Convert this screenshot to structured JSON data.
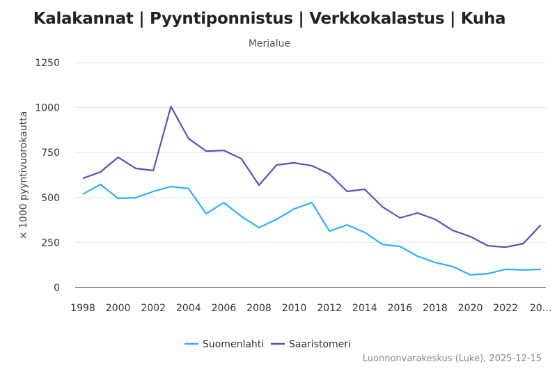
{
  "chart_data": {
    "type": "line",
    "title": "Kalakannat | Pyyntiponnistus | Verkkokalastus | Kuha",
    "subtitle": "Merialue",
    "ylabel": "× 1000 pyyntivuorokautta",
    "xlabel": "",
    "ylim": [
      0,
      1250
    ],
    "yticks": [
      "0",
      "250",
      "500",
      "750",
      "1000",
      "1250"
    ],
    "xticks": [
      "1998",
      "2000",
      "2002",
      "2004",
      "2006",
      "2008",
      "2010",
      "2012",
      "2014",
      "2016",
      "2018",
      "2020",
      "2022",
      "20…"
    ],
    "x": [
      1998,
      1999,
      2000,
      2001,
      2002,
      2003,
      2004,
      2005,
      2006,
      2007,
      2008,
      2009,
      2010,
      2011,
      2012,
      2013,
      2014,
      2015,
      2016,
      2017,
      2018,
      2019,
      2020,
      2021,
      2022,
      2023,
      2024
    ],
    "grid": true,
    "legend_position": "bottom",
    "series": [
      {
        "name": "Suomenlahti",
        "color": "#2caffe",
        "values": [
          519,
          573,
          495,
          499,
          534,
          561,
          550,
          410,
          472,
          395,
          333,
          379,
          437,
          472,
          313,
          348,
          306,
          240,
          228,
          174,
          139,
          116,
          70,
          77,
          101,
          97,
          101
        ]
      },
      {
        "name": "Saaristomeri",
        "color": "#544fc5",
        "values": [
          607,
          642,
          724,
          662,
          650,
          1006,
          828,
          758,
          762,
          716,
          569,
          681,
          693,
          677,
          631,
          534,
          546,
          449,
          387,
          414,
          379,
          317,
          283,
          232,
          224,
          244,
          348
        ]
      }
    ],
    "credits": "Luonnonvarakeskus (Luke), 2025-12-15"
  }
}
